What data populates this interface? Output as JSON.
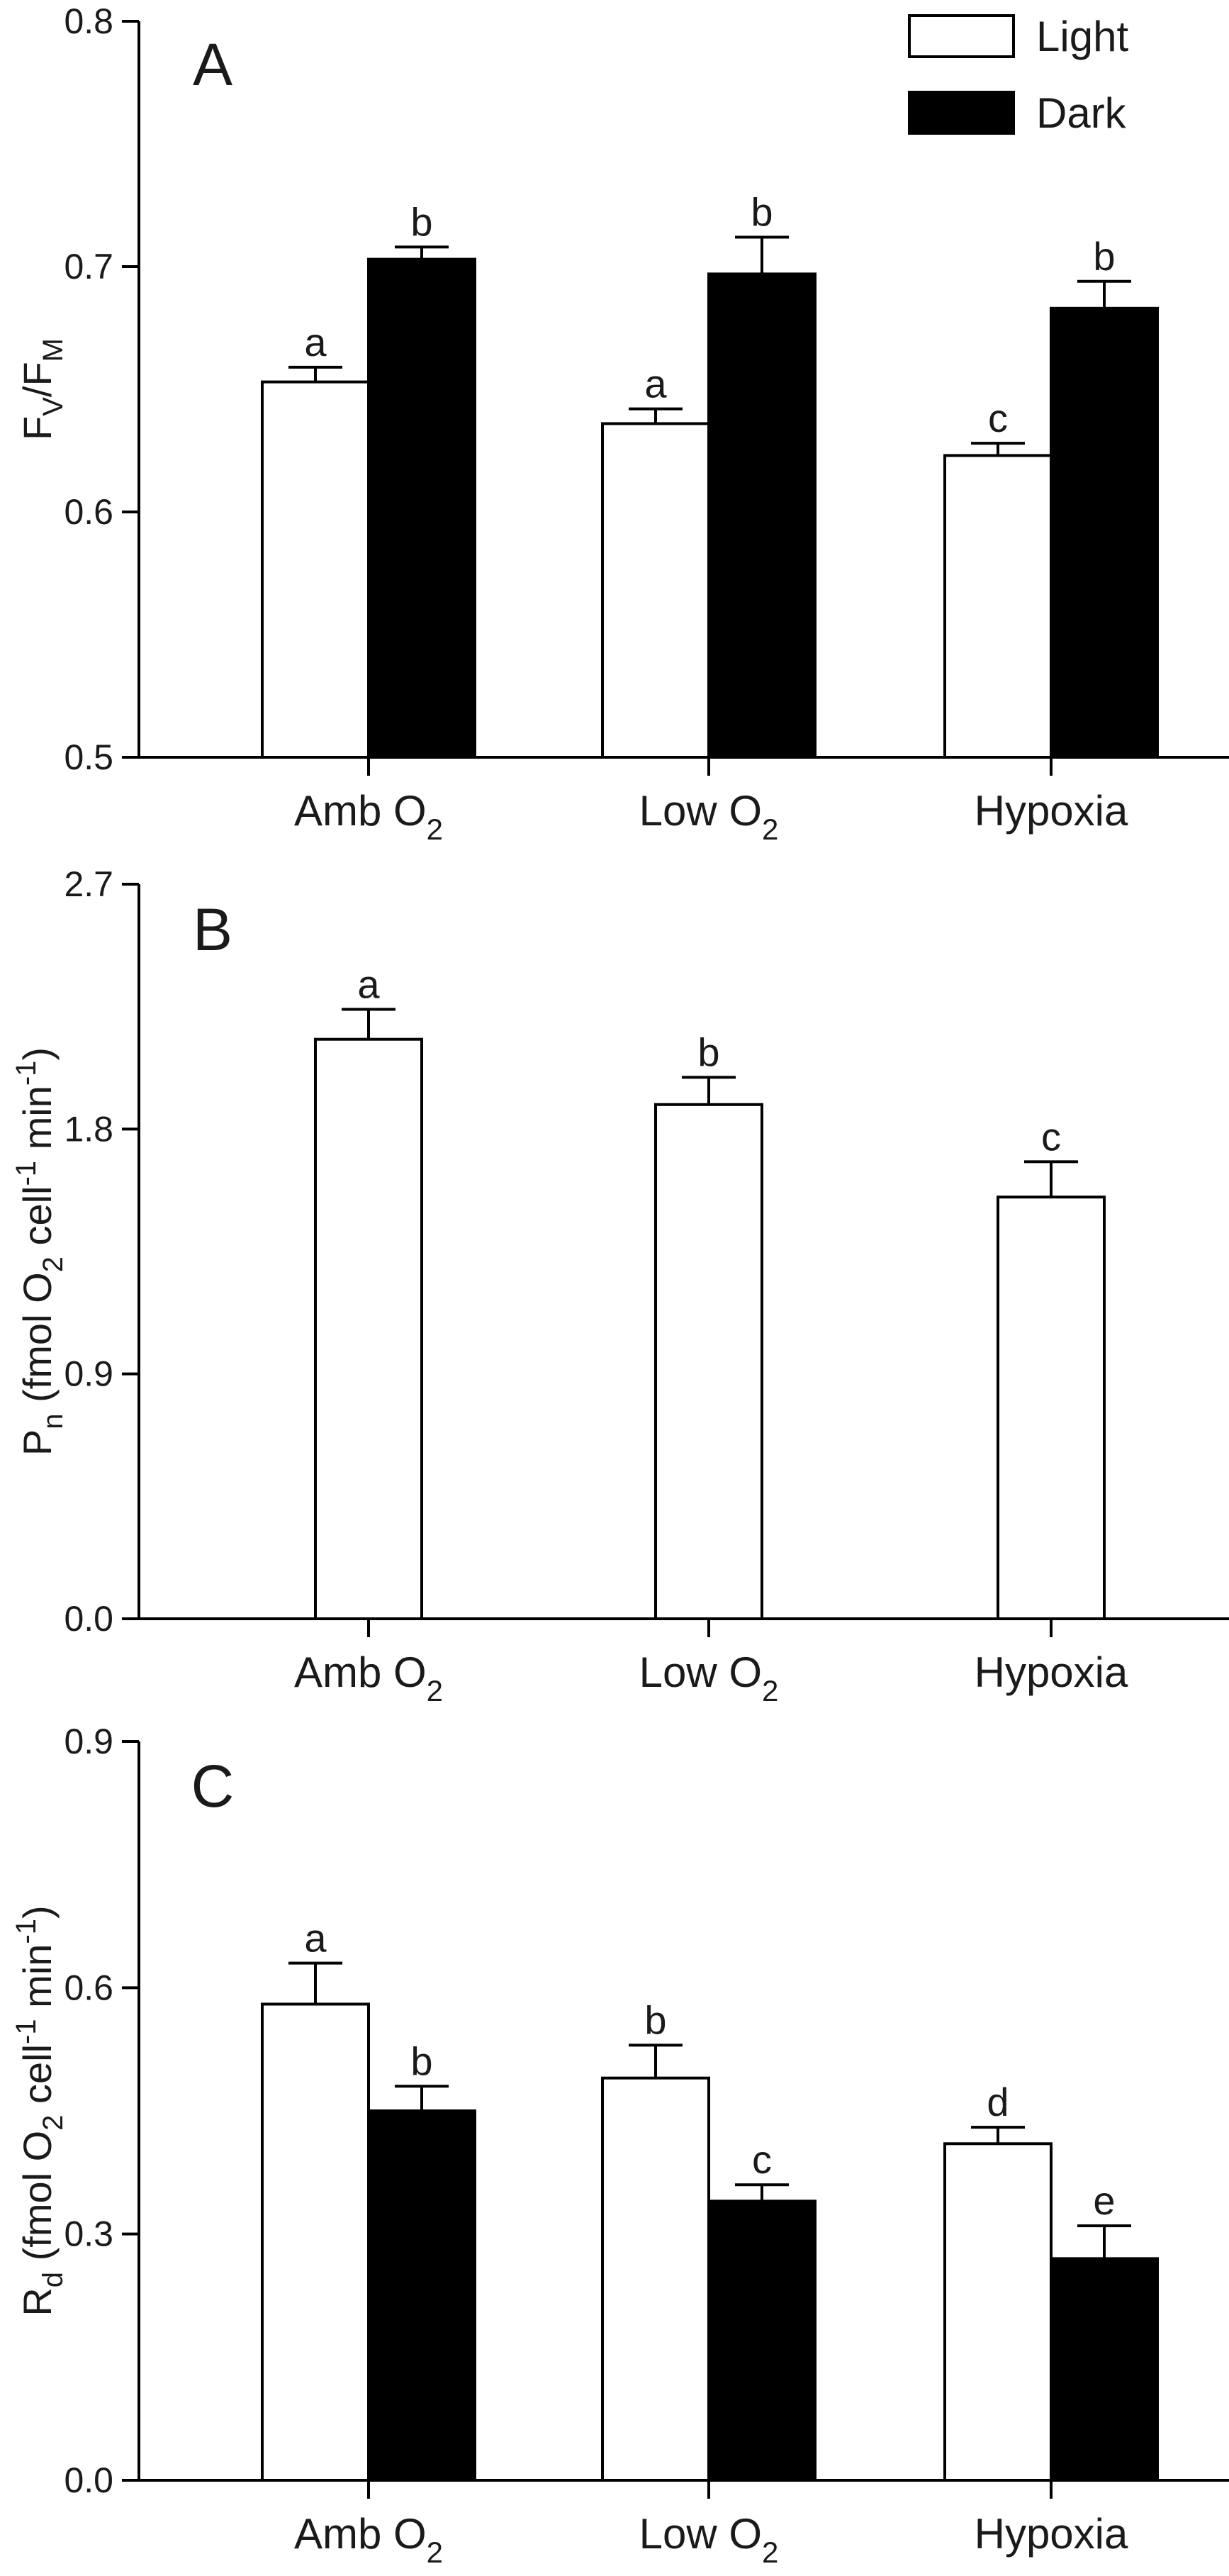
{
  "chart_data": [
    {
      "type": "bar",
      "panel_letter": "A",
      "categories": [
        "Amb O",
        "Low O",
        "Hypoxia"
      ],
      "category_subscripts": [
        "2",
        "2",
        ""
      ],
      "ylabel_parts": [
        "F",
        "V",
        "/F",
        "M"
      ],
      "ylim": [
        0.5,
        0.8
      ],
      "yticks": [
        "0.5",
        "0.6",
        "0.7",
        "0.8"
      ],
      "legend": {
        "position": "top-right",
        "entries": [
          "Light",
          "Dark"
        ]
      },
      "series": [
        {
          "name": "Light",
          "color": "#ffffff",
          "values": [
            0.653,
            0.636,
            0.623
          ],
          "errors": [
            0.006,
            0.006,
            0.005
          ],
          "letters": [
            "a",
            "a",
            "c"
          ]
        },
        {
          "name": "Dark",
          "color": "#000000",
          "values": [
            0.703,
            0.697,
            0.683
          ],
          "errors": [
            0.005,
            0.015,
            0.011
          ],
          "letters": [
            "b",
            "b",
            "b"
          ]
        }
      ]
    },
    {
      "type": "bar",
      "panel_letter": "B",
      "categories": [
        "Amb O",
        "Low O",
        "Hypoxia"
      ],
      "category_subscripts": [
        "2",
        "2",
        ""
      ],
      "ylabel_parts": [
        "P",
        "n",
        " (fmol O",
        "2",
        " cell",
        "-1",
        " min",
        "-1",
        ")"
      ],
      "ylim": [
        0.0,
        2.7
      ],
      "yticks": [
        "0.0",
        "0.9",
        "1.8",
        "2.7"
      ],
      "series": [
        {
          "name": "Light",
          "color": "#ffffff",
          "values": [
            2.13,
            1.89,
            1.55
          ],
          "errors": [
            0.11,
            0.1,
            0.13
          ],
          "letters": [
            "a",
            "b",
            "c"
          ]
        }
      ]
    },
    {
      "type": "bar",
      "panel_letter": "C",
      "categories": [
        "Amb O",
        "Low O",
        "Hypoxia"
      ],
      "category_subscripts": [
        "2",
        "2",
        ""
      ],
      "ylabel_parts": [
        "R",
        "d",
        " (fmol O",
        "2",
        " cell",
        "-1",
        " min",
        "-1",
        ")"
      ],
      "ylim": [
        0.0,
        0.9
      ],
      "yticks": [
        "0.0",
        "0.3",
        "0.6",
        "0.9"
      ],
      "series": [
        {
          "name": "Light",
          "color": "#ffffff",
          "values": [
            0.58,
            0.49,
            0.41
          ],
          "errors": [
            0.05,
            0.04,
            0.02
          ],
          "letters": [
            "a",
            "b",
            "d"
          ]
        },
        {
          "name": "Dark",
          "color": "#000000",
          "values": [
            0.45,
            0.34,
            0.27
          ],
          "errors": [
            0.03,
            0.02,
            0.04
          ],
          "letters": [
            "b",
            "c",
            "e"
          ]
        }
      ]
    }
  ]
}
